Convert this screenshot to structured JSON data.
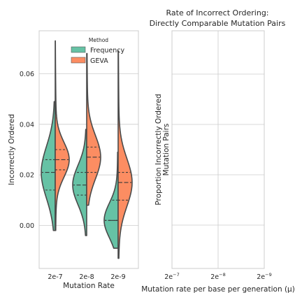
{
  "chart_data": [
    {
      "type": "violin",
      "split": true,
      "title": "",
      "xlabel": "Mutation Rate",
      "ylabel": "Incorrectly Ordered",
      "categories": [
        "2e-7",
        "2e-8",
        "2e-9"
      ],
      "ylim": [
        -0.017,
        0.077
      ],
      "yticks": [
        0.0,
        0.02,
        0.04,
        0.06
      ],
      "ytick_labels": [
        "0.00",
        "0.02",
        "0.04",
        "0.06"
      ],
      "grid": true,
      "legend": {
        "title": "Method",
        "placement": "top-right"
      },
      "series": [
        {
          "name": "Frequency",
          "color": "#66c2a5",
          "stats": [
            {
              "min": -0.002,
              "max": 0.049,
              "q1": 0.014,
              "median": 0.021,
              "q3": 0.026
            },
            {
              "min": -0.004,
              "max": 0.038,
              "q1": 0.012,
              "median": 0.016,
              "q3": 0.021
            },
            {
              "min": -0.009,
              "max": 0.029,
              "q1": 0.002,
              "median": 0.002,
              "q3": 0.01
            }
          ]
        },
        {
          "name": "GEVA",
          "color": "#fc8d62",
          "stats": [
            {
              "min": -0.002,
              "max": 0.073,
              "q1": 0.022,
              "median": 0.026,
              "q3": 0.03
            },
            {
              "min": 0.008,
              "max": 0.068,
              "q1": 0.021,
              "median": 0.027,
              "q3": 0.031
            },
            {
              "min": -0.013,
              "max": 0.069,
              "q1": 0.01,
              "median": 0.017,
              "q3": 0.021
            }
          ]
        }
      ]
    },
    {
      "type": "empty",
      "title": "Rate of Incorrect Ordering:",
      "subtitle": "Directly Comparable Mutation Pairs",
      "xlabel": "Mutation rate per base per generation (μ)",
      "ylabel": "Proportion Incorrectly Ordered",
      "ylabel2": "Mutation Pairs",
      "xtick_labels": [
        {
          "base": "2e",
          "exp": "−7"
        },
        {
          "base": "2e",
          "exp": "−8"
        },
        {
          "base": "2e",
          "exp": "−9"
        }
      ],
      "grid": true
    }
  ]
}
